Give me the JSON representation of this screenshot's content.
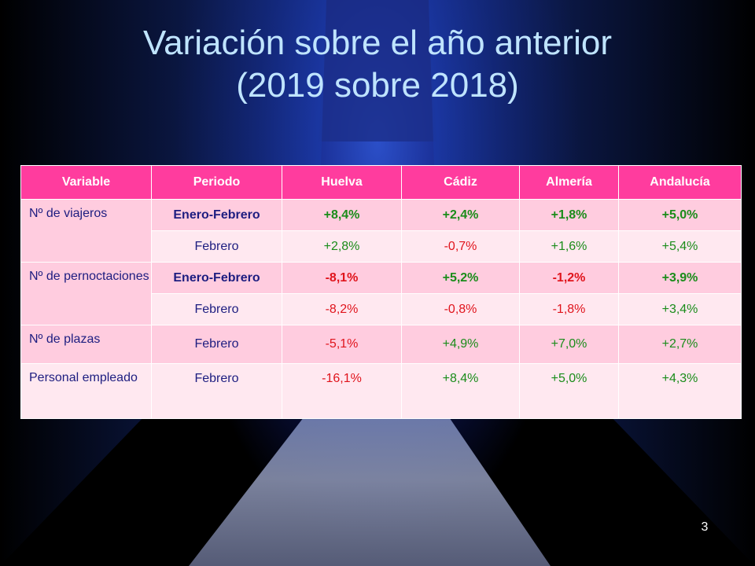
{
  "title": {
    "line1": "Variación sobre el año anterior",
    "line2": "(2019 sobre 2018)"
  },
  "table": {
    "headers": [
      "Variable",
      "Periodo",
      "Huelva",
      "Cádiz",
      "Almería",
      "Andalucía"
    ],
    "groups": [
      {
        "variable": "Nº de viajeros",
        "rows": [
          {
            "periodo": "Enero-Febrero",
            "huelva": "+8,4%",
            "cadiz": "+2,4%",
            "almeria": "+1,8%",
            "andalucia": "+5,0%"
          },
          {
            "periodo": "Febrero",
            "huelva": "+2,8%",
            "cadiz": "-0,7%",
            "almeria": "+1,6%",
            "andalucia": "+5,4%"
          }
        ]
      },
      {
        "variable": "Nº de pernoctaciones",
        "rows": [
          {
            "periodo": "Enero-Febrero",
            "huelva": "-8,1%",
            "cadiz": "+5,2%",
            "almeria": "-1,2%",
            "andalucia": "+3,9%"
          },
          {
            "periodo": "Febrero",
            "huelva": "-8,2%",
            "cadiz": "-0,8%",
            "almeria": "-1,8%",
            "andalucia": "+3,4%"
          }
        ]
      },
      {
        "variable": "Nº de plazas",
        "rows": [
          {
            "periodo": "Febrero",
            "huelva": "-5,1%",
            "cadiz": "+4,9%",
            "almeria": "+7,0%",
            "andalucia": "+2,7%"
          }
        ]
      },
      {
        "variable": "Personal empleado",
        "rows": [
          {
            "periodo": "Febrero",
            "huelva": "-16,1%",
            "cadiz": "+8,4%",
            "almeria": "+5,0%",
            "andalucia": "+4,3%"
          }
        ]
      }
    ]
  },
  "colors": {
    "header_bg": "#ff3c9e",
    "row_dark": "#ffccdf",
    "row_light": "#ffe8f0",
    "positive": "#1a8c1a",
    "negative": "#e0141c",
    "title": "#bfe4ff"
  },
  "page_number": "3"
}
